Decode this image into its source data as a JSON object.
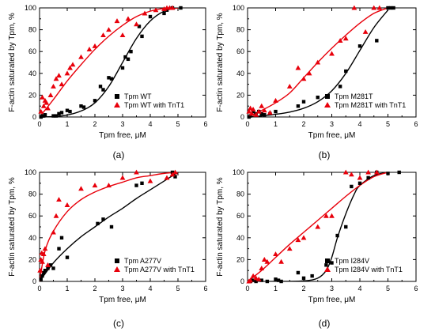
{
  "chart_data": [
    {
      "type": "scatter",
      "panel_label": "(a)",
      "xlabel": "Tpm free, μM",
      "ylabel": "F-actin saturated by Tpm, %",
      "xlim": [
        0,
        6
      ],
      "ylim": [
        0,
        100
      ],
      "x_ticks": [
        "0",
        "1",
        "2",
        "3",
        "4",
        "5",
        "6"
      ],
      "y_ticks": [
        "0",
        "20",
        "40",
        "60",
        "80",
        "100"
      ],
      "legend_position": "bottom-right",
      "colors": {
        "wt": "#000000",
        "tnt": "#e8000b"
      },
      "series": [
        {
          "name": "Tpm WT",
          "marker": "square",
          "color": "#000000",
          "x": [
            0.05,
            0.1,
            0.15,
            0.2,
            0.5,
            0.6,
            0.7,
            0.8,
            1.0,
            1.1,
            1.5,
            1.6,
            2.0,
            2.2,
            2.3,
            2.5,
            2.6,
            3.0,
            3.1,
            3.2,
            3.3,
            3.6,
            3.7,
            4.0,
            4.5,
            4.6,
            4.8,
            5.1
          ],
          "y": [
            0,
            1,
            1,
            2,
            1,
            1,
            3,
            4,
            6,
            5,
            10,
            9,
            15,
            28,
            25,
            36,
            35,
            45,
            55,
            53,
            60,
            83,
            74,
            92,
            95,
            98,
            100,
            100
          ]
        },
        {
          "name": "Tpm WT with TnT1",
          "marker": "triangle",
          "color": "#e8000b",
          "x": [
            0.05,
            0.1,
            0.15,
            0.2,
            0.25,
            0.3,
            0.4,
            0.5,
            0.6,
            0.7,
            0.8,
            1.0,
            1.1,
            1.2,
            1.5,
            1.8,
            2.0,
            2.3,
            2.5,
            2.8,
            3.0,
            3.2,
            3.5,
            3.8,
            4.2,
            4.5,
            4.6,
            4.7,
            4.8
          ],
          "y": [
            5,
            18,
            10,
            15,
            13,
            8,
            20,
            28,
            35,
            38,
            30,
            40,
            45,
            48,
            55,
            62,
            65,
            75,
            80,
            88,
            75,
            90,
            85,
            95,
            98,
            99,
            100,
            100,
            100
          ]
        }
      ],
      "fits": [
        {
          "series": "Tpm WT",
          "x": [
            0,
            0.5,
            1,
            1.5,
            2,
            2.5,
            3,
            3.5,
            4,
            4.5,
            5
          ],
          "y": [
            0,
            0.4,
            1.8,
            5.5,
            13,
            28,
            50,
            72,
            88,
            97,
            100
          ]
        },
        {
          "series": "Tpm WT with TnT1",
          "x": [
            0,
            0.5,
            1,
            1.5,
            2,
            2.5,
            3,
            3.5,
            4,
            4.5,
            5
          ],
          "y": [
            0,
            16,
            33,
            48,
            62,
            74,
            84,
            92,
            97,
            99.5,
            100
          ]
        }
      ]
    },
    {
      "type": "scatter",
      "panel_label": "(b)",
      "xlabel": "Tpm free, μM",
      "ylabel": "F-actin saturated by Tpm, %",
      "xlim": [
        0,
        6
      ],
      "ylim": [
        0,
        100
      ],
      "x_ticks": [
        "0",
        "1",
        "2",
        "3",
        "4",
        "5",
        "6"
      ],
      "y_ticks": [
        "0",
        "20",
        "40",
        "60",
        "80",
        "100"
      ],
      "legend_position": "bottom-right",
      "colors": {
        "wt": "#000000",
        "tnt": "#e8000b"
      },
      "series": [
        {
          "name": "Tpm M281T",
          "marker": "square",
          "color": "#000000",
          "x": [
            0.05,
            0.1,
            0.2,
            0.3,
            0.4,
            0.5,
            0.6,
            0.8,
            1.0,
            1.8,
            2.0,
            2.5,
            3.3,
            3.5,
            4.0,
            4.6,
            5.0,
            5.1,
            5.2
          ],
          "y": [
            0,
            1,
            5,
            3,
            5,
            3,
            2,
            3,
            5,
            10,
            14,
            18,
            28,
            42,
            65,
            70,
            100,
            100,
            100
          ]
        },
        {
          "name": "Tpm M281T with TnT1",
          "marker": "triangle",
          "color": "#e8000b",
          "x": [
            0.05,
            0.1,
            0.15,
            0.2,
            0.3,
            0.4,
            0.5,
            0.6,
            0.8,
            1.0,
            1.5,
            1.8,
            2.0,
            2.2,
            2.5,
            3.0,
            3.3,
            3.5,
            3.8,
            4.2,
            4.5,
            4.7
          ],
          "y": [
            5,
            8,
            3,
            7,
            2,
            5,
            10,
            6,
            4,
            15,
            28,
            45,
            35,
            40,
            50,
            58,
            70,
            72,
            100,
            78,
            100,
            100
          ]
        }
      ],
      "fits": [
        {
          "series": "Tpm M281T",
          "x": [
            0,
            0.5,
            1,
            1.5,
            2,
            2.5,
            3,
            3.5,
            4,
            4.5,
            5
          ],
          "y": [
            0,
            1,
            2.5,
            4.5,
            8,
            14,
            24,
            40,
            61,
            82,
            98
          ]
        },
        {
          "series": "Tpm M281T with TnT1",
          "x": [
            0,
            0.5,
            1,
            1.5,
            2,
            2.5,
            3,
            3.5,
            4,
            4.5,
            5
          ],
          "y": [
            0,
            6,
            13,
            22,
            36,
            50,
            63,
            75,
            86,
            95,
            100
          ]
        }
      ]
    },
    {
      "type": "scatter",
      "panel_label": "(c)",
      "xlabel": "Tpm free, μM",
      "ylabel": "F-actin saturated by Tpm, %",
      "xlim": [
        0,
        6
      ],
      "ylim": [
        0,
        100
      ],
      "x_ticks": [
        "0",
        "1",
        "2",
        "3",
        "4",
        "5",
        "6"
      ],
      "y_ticks": [
        "0",
        "20",
        "40",
        "60",
        "80",
        "100"
      ],
      "legend_position": "bottom-right",
      "colors": {
        "wt": "#000000",
        "tnt": "#e8000b"
      },
      "series": [
        {
          "name": "Tpm A277V",
          "marker": "square",
          "color": "#000000",
          "x": [
            0.05,
            0.1,
            0.15,
            0.2,
            0.3,
            0.4,
            0.5,
            0.7,
            0.8,
            1.0,
            2.1,
            2.3,
            2.6,
            3.5,
            3.7,
            4.8,
            4.9
          ],
          "y": [
            2,
            5,
            8,
            10,
            12,
            15,
            12,
            30,
            40,
            22,
            53,
            57,
            50,
            88,
            90,
            100,
            96
          ]
        },
        {
          "name": "Tpm A277V with TnT1",
          "marker": "triangle",
          "color": "#e8000b",
          "x": [
            0.02,
            0.05,
            0.08,
            0.1,
            0.15,
            0.2,
            0.3,
            0.5,
            0.6,
            0.7,
            1.0,
            1.5,
            2.0,
            2.5,
            3.0,
            3.5,
            4.0,
            4.6,
            4.8,
            4.9
          ],
          "y": [
            10,
            20,
            26,
            18,
            25,
            30,
            15,
            45,
            60,
            75,
            70,
            85,
            88,
            88,
            95,
            100,
            92,
            95,
            98,
            100
          ]
        }
      ],
      "fits": [
        {
          "series": "Tpm A277V",
          "x": [
            0,
            0.5,
            1,
            1.5,
            2,
            2.5,
            3,
            3.5,
            4,
            4.5,
            5
          ],
          "y": [
            0,
            17,
            30,
            41,
            50,
            59,
            67,
            76,
            84,
            92,
            100
          ]
        },
        {
          "series": "Tpm A277V with TnT1",
          "x": [
            0,
            0.2,
            0.5,
            1,
            1.5,
            2,
            2.5,
            3,
            3.5,
            4,
            4.5,
            5
          ],
          "y": [
            0,
            28,
            46,
            64,
            75,
            82,
            87,
            91,
            95,
            97,
            99,
            100
          ]
        }
      ]
    },
    {
      "type": "scatter",
      "panel_label": "(d)",
      "xlabel": "Tpm free, μM",
      "ylabel": "F-actin saturated by Tpm, %",
      "xlim": [
        0,
        6
      ],
      "ylim": [
        0,
        100
      ],
      "x_ticks": [
        "0",
        "1",
        "2",
        "3",
        "4",
        "5",
        "6"
      ],
      "y_ticks": [
        "0",
        "20",
        "40",
        "60",
        "80",
        "100"
      ],
      "legend_position": "bottom-right",
      "colors": {
        "wt": "#000000",
        "tnt": "#e8000b"
      },
      "series": [
        {
          "name": "Tpm I284V",
          "marker": "square",
          "color": "#000000",
          "x": [
            0.1,
            0.2,
            0.3,
            0.5,
            0.7,
            1.0,
            1.1,
            1.2,
            1.8,
            2.0,
            2.3,
            2.8,
            3.0,
            3.2,
            3.5,
            3.7,
            4.0,
            4.3,
            4.6,
            5.0,
            5.4
          ],
          "y": [
            0,
            1,
            0,
            1,
            0,
            2,
            1,
            0,
            8,
            3,
            5,
            15,
            17,
            42,
            50,
            87,
            90,
            95,
            100,
            99,
            100
          ]
        },
        {
          "name": "Tpm I284V with TnT1",
          "marker": "triangle",
          "color": "#e8000b",
          "x": [
            0.05,
            0.1,
            0.2,
            0.3,
            0.4,
            0.5,
            0.6,
            0.7,
            1.0,
            1.2,
            1.5,
            1.8,
            2.0,
            2.5,
            2.8,
            3.0,
            3.5,
            3.7,
            4.0,
            4.3,
            4.6
          ],
          "y": [
            0,
            1,
            5,
            3,
            2,
            12,
            20,
            18,
            25,
            18,
            30,
            38,
            40,
            50,
            60,
            60,
            100,
            98,
            95,
            100,
            100
          ]
        }
      ],
      "fits": [
        {
          "series": "Tpm I284V",
          "x": [
            0,
            1,
            2,
            2.5,
            2.8,
            3,
            3.2,
            3.5,
            3.8,
            4,
            4.5,
            5,
            5.5
          ],
          "y": [
            0,
            0,
            0.5,
            3,
            10,
            22,
            40,
            62,
            80,
            88,
            97,
            100,
            103
          ]
        },
        {
          "series": "Tpm I284V with TnT1",
          "x": [
            0,
            0.5,
            1,
            1.5,
            2,
            2.5,
            3,
            3.5,
            4,
            4.5,
            5
          ],
          "y": [
            0,
            10,
            22,
            34,
            45,
            56,
            67,
            78,
            88,
            96,
            100
          ]
        }
      ]
    }
  ]
}
